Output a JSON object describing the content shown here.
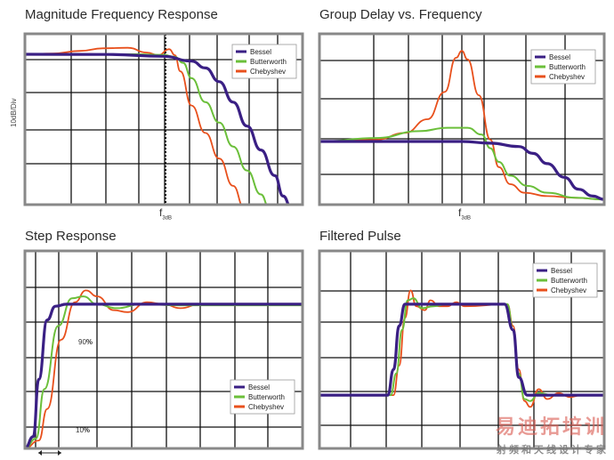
{
  "colors": {
    "bessel": "#3a1f84",
    "butterworth": "#6bbf3a",
    "chebyshev": "#e8501c",
    "frame": "#888888",
    "grid": "#111111"
  },
  "titles": {
    "magnitude": "Magnitude Frequency Response",
    "group_delay": "Group Delay vs. Frequency",
    "step": "Step Response",
    "pulse": "Filtered Pulse"
  },
  "labels": {
    "y_axis": "10dB/Div",
    "f3db_main": "f",
    "f3db_sub": "3dB",
    "level_90": "90",
    "level_10": "10",
    "percent": "%"
  },
  "watermark": {
    "line1": "易迪拓培训",
    "line2": "射频和天线设计专家"
  },
  "chart_data": [
    {
      "type": "line",
      "panel": "magnitude",
      "title": "Magnitude Frequency Response",
      "ylabel": "10dB/Div",
      "xlabel": "f3dB",
      "grid": true,
      "legend_position": "top-right",
      "legend": [
        "Bessel",
        "Butterworth",
        "Chebyshev"
      ],
      "series": [
        {
          "name": "Bessel",
          "points": [
            [
              0,
              0.88
            ],
            [
              0.3,
              0.879
            ],
            [
              0.5,
              0.868
            ],
            [
              0.6,
              0.84
            ],
            [
              0.65,
              0.8
            ],
            [
              0.7,
              0.72
            ],
            [
              0.75,
              0.6
            ],
            [
              0.8,
              0.46
            ],
            [
              0.85,
              0.32
            ],
            [
              0.9,
              0.17
            ],
            [
              0.93,
              0.05
            ],
            [
              0.96,
              -0.02
            ]
          ]
        },
        {
          "name": "Butterworth",
          "points": [
            [
              0,
              0.88
            ],
            [
              0.4,
              0.88
            ],
            [
              0.5,
              0.876
            ],
            [
              0.54,
              0.865
            ],
            [
              0.57,
              0.83
            ],
            [
              0.6,
              0.74
            ],
            [
              0.65,
              0.6
            ],
            [
              0.7,
              0.48
            ],
            [
              0.75,
              0.34
            ],
            [
              0.8,
              0.2
            ],
            [
              0.85,
              0.06
            ],
            [
              0.88,
              -0.02
            ]
          ]
        },
        {
          "name": "Chebyshev",
          "points": [
            [
              0,
              0.88
            ],
            [
              0.1,
              0.885
            ],
            [
              0.2,
              0.9
            ],
            [
              0.28,
              0.915
            ],
            [
              0.37,
              0.918
            ],
            [
              0.44,
              0.89
            ],
            [
              0.48,
              0.875
            ],
            [
              0.52,
              0.91
            ],
            [
              0.54,
              0.875
            ],
            [
              0.56,
              0.78
            ],
            [
              0.6,
              0.58
            ],
            [
              0.65,
              0.42
            ],
            [
              0.7,
              0.27
            ],
            [
              0.75,
              0.11
            ],
            [
              0.79,
              -0.02
            ]
          ]
        }
      ]
    },
    {
      "type": "line",
      "panel": "group_delay",
      "title": "Group Delay vs. Frequency",
      "xlabel": "f3dB",
      "grid": true,
      "legend_position": "top-right",
      "legend": [
        "Bessel",
        "Butterworth",
        "Chebyshev"
      ],
      "series": [
        {
          "name": "Bessel",
          "points": [
            [
              0,
              0.37
            ],
            [
              0.3,
              0.37
            ],
            [
              0.5,
              0.37
            ],
            [
              0.6,
              0.36
            ],
            [
              0.7,
              0.34
            ],
            [
              0.75,
              0.3
            ],
            [
              0.8,
              0.24
            ],
            [
              0.86,
              0.16
            ],
            [
              0.91,
              0.09
            ],
            [
              0.96,
              0.05
            ],
            [
              1.0,
              0.03
            ]
          ]
        },
        {
          "name": "Butterworth",
          "points": [
            [
              0,
              0.37
            ],
            [
              0.2,
              0.39
            ],
            [
              0.35,
              0.43
            ],
            [
              0.45,
              0.45
            ],
            [
              0.52,
              0.45
            ],
            [
              0.57,
              0.41
            ],
            [
              0.6,
              0.33
            ],
            [
              0.63,
              0.25
            ],
            [
              0.67,
              0.17
            ],
            [
              0.73,
              0.11
            ],
            [
              0.8,
              0.07
            ],
            [
              0.9,
              0.04
            ],
            [
              1.0,
              0.03
            ]
          ]
        },
        {
          "name": "Chebyshev",
          "points": [
            [
              0,
              0.37
            ],
            [
              0.2,
              0.38
            ],
            [
              0.3,
              0.42
            ],
            [
              0.38,
              0.5
            ],
            [
              0.44,
              0.66
            ],
            [
              0.48,
              0.86
            ],
            [
              0.5,
              0.9
            ],
            [
              0.52,
              0.85
            ],
            [
              0.56,
              0.64
            ],
            [
              0.6,
              0.38
            ],
            [
              0.63,
              0.22
            ],
            [
              0.67,
              0.12
            ],
            [
              0.72,
              0.07
            ],
            [
              0.8,
              0.05
            ],
            [
              0.9,
              0.04
            ],
            [
              1.0,
              0.03
            ]
          ]
        }
      ]
    },
    {
      "type": "line",
      "panel": "step",
      "title": "Step Response",
      "grid": true,
      "legend_position": "bottom-right",
      "legend": [
        "Bessel",
        "Butterworth",
        "Chebyshev"
      ],
      "annotations": [
        "90%",
        "10%"
      ],
      "series": [
        {
          "name": "Bessel",
          "points": [
            [
              0,
              0
            ],
            [
              0.03,
              0.06
            ],
            [
              0.05,
              0.35
            ],
            [
              0.08,
              0.65
            ],
            [
              0.11,
              0.72
            ],
            [
              0.15,
              0.73
            ],
            [
              1.0,
              0.73
            ]
          ]
        },
        {
          "name": "Butterworth",
          "points": [
            [
              0,
              0
            ],
            [
              0.04,
              0.05
            ],
            [
              0.07,
              0.3
            ],
            [
              0.12,
              0.62
            ],
            [
              0.17,
              0.76
            ],
            [
              0.21,
              0.77
            ],
            [
              0.26,
              0.73
            ],
            [
              0.33,
              0.71
            ],
            [
              0.42,
              0.73
            ],
            [
              0.55,
              0.725
            ],
            [
              1.0,
              0.725
            ]
          ]
        },
        {
          "name": "Chebyshev",
          "points": [
            [
              0,
              0
            ],
            [
              0.05,
              0.04
            ],
            [
              0.08,
              0.2
            ],
            [
              0.13,
              0.55
            ],
            [
              0.18,
              0.74
            ],
            [
              0.22,
              0.8
            ],
            [
              0.26,
              0.77
            ],
            [
              0.32,
              0.7
            ],
            [
              0.37,
              0.69
            ],
            [
              0.44,
              0.74
            ],
            [
              0.5,
              0.73
            ],
            [
              0.56,
              0.71
            ],
            [
              0.63,
              0.73
            ],
            [
              0.7,
              0.725
            ],
            [
              1.0,
              0.725
            ]
          ]
        }
      ]
    },
    {
      "type": "line",
      "panel": "pulse",
      "title": "Filtered Pulse",
      "grid": true,
      "legend_position": "top-right",
      "legend": [
        "Bessel",
        "Butterworth",
        "Chebyshev"
      ],
      "series": [
        {
          "name": "Bessel",
          "points": [
            [
              0,
              0.27
            ],
            [
              0.24,
              0.27
            ],
            [
              0.26,
              0.4
            ],
            [
              0.28,
              0.62
            ],
            [
              0.3,
              0.73
            ],
            [
              0.32,
              0.73
            ],
            [
              0.65,
              0.73
            ],
            [
              0.68,
              0.6
            ],
            [
              0.7,
              0.36
            ],
            [
              0.73,
              0.27
            ],
            [
              1.0,
              0.27
            ]
          ]
        },
        {
          "name": "Butterworth",
          "points": [
            [
              0,
              0.27
            ],
            [
              0.25,
              0.27
            ],
            [
              0.27,
              0.38
            ],
            [
              0.29,
              0.6
            ],
            [
              0.31,
              0.75
            ],
            [
              0.33,
              0.76
            ],
            [
              0.36,
              0.71
            ],
            [
              0.4,
              0.72
            ],
            [
              0.45,
              0.73
            ],
            [
              0.66,
              0.73
            ],
            [
              0.68,
              0.6
            ],
            [
              0.7,
              0.38
            ],
            [
              0.72,
              0.25
            ],
            [
              0.74,
              0.24
            ],
            [
              0.77,
              0.28
            ],
            [
              0.82,
              0.27
            ],
            [
              1.0,
              0.27
            ]
          ]
        },
        {
          "name": "Chebyshev",
          "points": [
            [
              0,
              0.27
            ],
            [
              0.26,
              0.27
            ],
            [
              0.28,
              0.42
            ],
            [
              0.3,
              0.66
            ],
            [
              0.32,
              0.8
            ],
            [
              0.34,
              0.72
            ],
            [
              0.37,
              0.7
            ],
            [
              0.39,
              0.75
            ],
            [
              0.42,
              0.72
            ],
            [
              0.45,
              0.72
            ],
            [
              0.48,
              0.74
            ],
            [
              0.51,
              0.72
            ],
            [
              0.66,
              0.73
            ],
            [
              0.68,
              0.62
            ],
            [
              0.7,
              0.4
            ],
            [
              0.72,
              0.24
            ],
            [
              0.74,
              0.21
            ],
            [
              0.77,
              0.3
            ],
            [
              0.8,
              0.25
            ],
            [
              0.84,
              0.28
            ],
            [
              0.88,
              0.26
            ],
            [
              0.92,
              0.27
            ],
            [
              1.0,
              0.27
            ]
          ]
        }
      ]
    }
  ]
}
